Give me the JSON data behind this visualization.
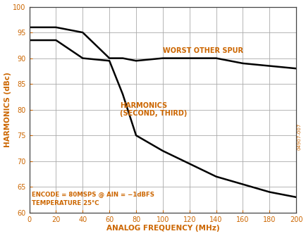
{
  "xlabel": "ANALOG FREQUENCY (MHz)",
  "ylabel": "HARMONICS (dBc)",
  "xlim": [
    0,
    200
  ],
  "ylim": [
    60,
    100
  ],
  "xticks": [
    0,
    20,
    40,
    60,
    80,
    100,
    120,
    140,
    160,
    180,
    200
  ],
  "yticks": [
    60,
    65,
    70,
    75,
    80,
    85,
    90,
    95,
    100
  ],
  "worst_spur_x": [
    0,
    20,
    40,
    60,
    70,
    80,
    100,
    140,
    160,
    180,
    200
  ],
  "worst_spur_y": [
    96.0,
    96.0,
    95.0,
    90.0,
    90.0,
    89.5,
    90.0,
    90.0,
    89.0,
    88.5,
    88.0
  ],
  "harmonics_x": [
    0,
    20,
    40,
    60,
    70,
    80,
    100,
    120,
    140,
    160,
    180,
    200
  ],
  "harmonics_y": [
    93.5,
    93.5,
    90.0,
    89.5,
    83.0,
    75.0,
    72.0,
    69.5,
    67.0,
    65.5,
    64.0,
    63.0
  ],
  "line_color": "#000000",
  "grid_color": "#aaaaaa",
  "background_color": "#ffffff",
  "text_color_label": "#cc6600",
  "text_color_annotation": "#cc6600",
  "text_color_data": "#cc6600",
  "label_worst_spur": "WORST OTHER SPUR",
  "label_harmonics": "HARMONICS\n(SECOND, THIRD)",
  "annotation": "ENCODE = 80MSPS @ AIN = −1dBFS\nTEMPERATURE 25°C",
  "watermark": "04907-007"
}
